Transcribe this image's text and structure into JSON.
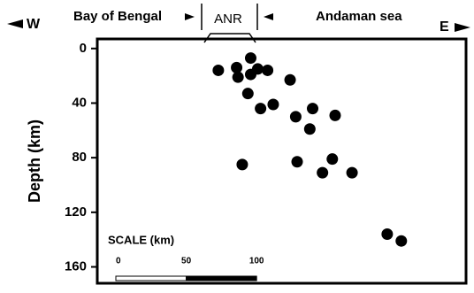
{
  "chart_data": {
    "type": "scatter",
    "ylabel": "Depth (km)",
    "left_label": "W",
    "right_label": "E",
    "regions": [
      "Bay of Bengal",
      "ANR",
      "Andaman sea"
    ],
    "scale": {
      "title": "SCALE (km)",
      "ticks": [
        0,
        50,
        100
      ]
    },
    "xlim": [
      0,
      262
    ],
    "ylim": [
      -7,
      172
    ],
    "yticks": [
      0,
      40,
      80,
      120,
      160
    ],
    "color": "#000000",
    "x": [
      86,
      99,
      109,
      100,
      109,
      114,
      121,
      107,
      137,
      125,
      116,
      153,
      141,
      169,
      151,
      103,
      142,
      167,
      160,
      181,
      206,
      216
    ],
    "values": [
      16,
      14,
      7,
      21,
      19,
      15,
      16,
      33,
      23,
      41,
      44,
      44,
      50,
      49,
      59,
      85,
      83,
      81,
      91,
      91,
      136,
      141
    ]
  }
}
